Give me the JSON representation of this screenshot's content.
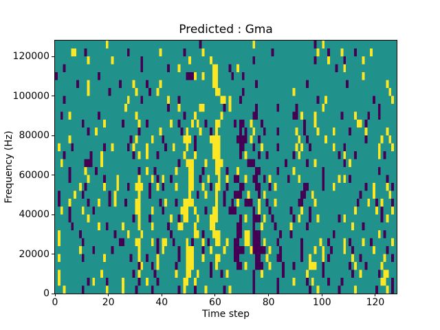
{
  "figure": {
    "title": "Predicted : Gma"
  },
  "chart_data": {
    "type": "heatmap",
    "title": "Predicted : Gma",
    "xlabel": "Time step",
    "ylabel": "Frequency (Hz)",
    "x_range": [
      0,
      128
    ],
    "y_range": [
      0,
      128000
    ],
    "x_ticks": [
      0,
      20,
      40,
      60,
      80,
      100,
      120
    ],
    "y_ticks": [
      0,
      20000,
      40000,
      60000,
      80000,
      100000,
      120000
    ],
    "grid_cols": 128,
    "grid_rows": 32,
    "grid": false,
    "legend": "none",
    "colormap_name": "viridis",
    "colors": {
      "low": "#440154",
      "mid": "#21918c",
      "high": "#fde725"
    },
    "value_encoding": {
      "p": 0.0,
      ".": 0.5,
      "y": 1.0
    },
    "matrix_row_order": "top-to-bottom (row 0 = 128000 Hz, last row = 0 Hz)",
    "matrix": [
      "...................y..................................p...................y......................p..y...........................",
      "......yy...p...............p...........y........p......y.........................p................y...p....y....p.....y.........",
      "............y........y..........p.................y.......y...............p......................p....y.....p......y............",
      "...p............................p.........p...y............yy....p..y....................................p..y...................",
      "p...............p................................pppy..y...yy.....p...p............................................y............",
      "........p...y...........p....y....p....y...................yy..............p..................p..............p..............y...",
      "............y.......p.........y....p..y.....................yy........p..................y...................................y..",
      "...p.......................y....p.........y...p...............yy.y...p............................p..y.................p......y.",
      "..........................y...............p...y.......yy.......p.y.........p.......p......p.........y....................p......",
      "..p..y..........p.............y.................p...y.........y...........pp.............pp.y....y.........p....y....p...p......",
      "..........p.......y......p.....y..p........y..p....y.y..p...yy.....p.pp..y...p...............p...y...............yy.p...........",
      "............p..y...............p.......y.......p.y....y...p.y........p.p..y...p....p......y..p....y.....y.....p.....y.......y...",
      ".....y......................p.y.....y...p.......yyy.p.....yyyy......pppp.y..p..............y..p......y..............p.....y..y..",
      ".y....p...........p..y.....p.y....y......p..y....y..p......yyy.......pp...p..y.....p......y.y..p........y...p............y....y.",
      "...p.........p...y...........p.y..y...p.........y...y......yyy.......p.y....p..p.........p.y..............p.y...p........y.p....",
      "..y........ppp...y............................p..yyy....y...yyy.........ppp...........p.......p..y..........p.y.................",
      ".....p.....y...p...............p..y..p.......y....yy...p....yy..p...y......pp......p.....y..........p....................p......",
      ".....p......y.....p....y.......y....y.p.y..p......yy..p..y...y..y..pp..y..pp..p.y......p...y........p.....y.y.p.............p...",
      ".........y.p......y....y...p..yyy..p..y.p....y....yy...y..p.yy..p....pp....pp...p.y..........pp.....p...y...........p..y....y.p.",
      ".p.....y..p.........p.y........y...p..............y..p..y...y..p...ppp..y...p.y.............pp..y.................p....y.....y.",
      ".p...y......p...y...p.y...p...yy.......p.y...p..yyyy........y..p..p.y..ppp..y..p..y........pp....y...............p...y..p.y...p.",
      "..y..p....y...p...............yy....y...p......yyy..y...p..yy....ppp......p.y...p.......p...y..p................y.......y.p...y.",
      ".....p......y................p.y...p.......y..p.yy...y....yyy........p.y..ppp.y..p.......p.y...p..y.......p.y.............p.y...",
      "......p.........y..p.....y.....y....y.....p...yy....y.....yy........pp....p..y....p.....y.....p................y...p...........",
      ".y.......p............p....y....y..........p........yy.p...yyy......pp.yy.ppp.......p...p...............p................y.p....",
      ".y........p.............pp....yy....y.p.yy..p....y.p...y.p..yy..y..pp..yy.ppp.y....p........p......y..p.....y.p....y..p.......y.",
      ".........y....p......p.........y......p.y.....p..yyy...p..y....y...pppp..yppppp.y...p.......p....y..y..p....y..p.......y....p...",
      ".y........p.......y.........p..y..p...y.......p..yyy...y....yy.....pp......pp..y...pp.......p..y....y.p........y..p........y..p.",
      "...............................py...p.y......p...yyy......p.y.......pp.y...ppp..y....p...p.....yyy..p.........p.y...p.....y.....",
      ".y...............y...........p.y.....p.......y...yy..y....p...p.y.........p..y.......p........y.....p..........p..y......p.yy..",
      ".y..........p.y....p.....y.....p..y...p.........yy..y.....................p........p.....y....p.y.....p....p..............yy..p.",
      "...y......p........y.....y....p.....p.........p.y...p...y......p.y........p........p...........p..y.......p.....y.......p...y.p."
    ]
  }
}
